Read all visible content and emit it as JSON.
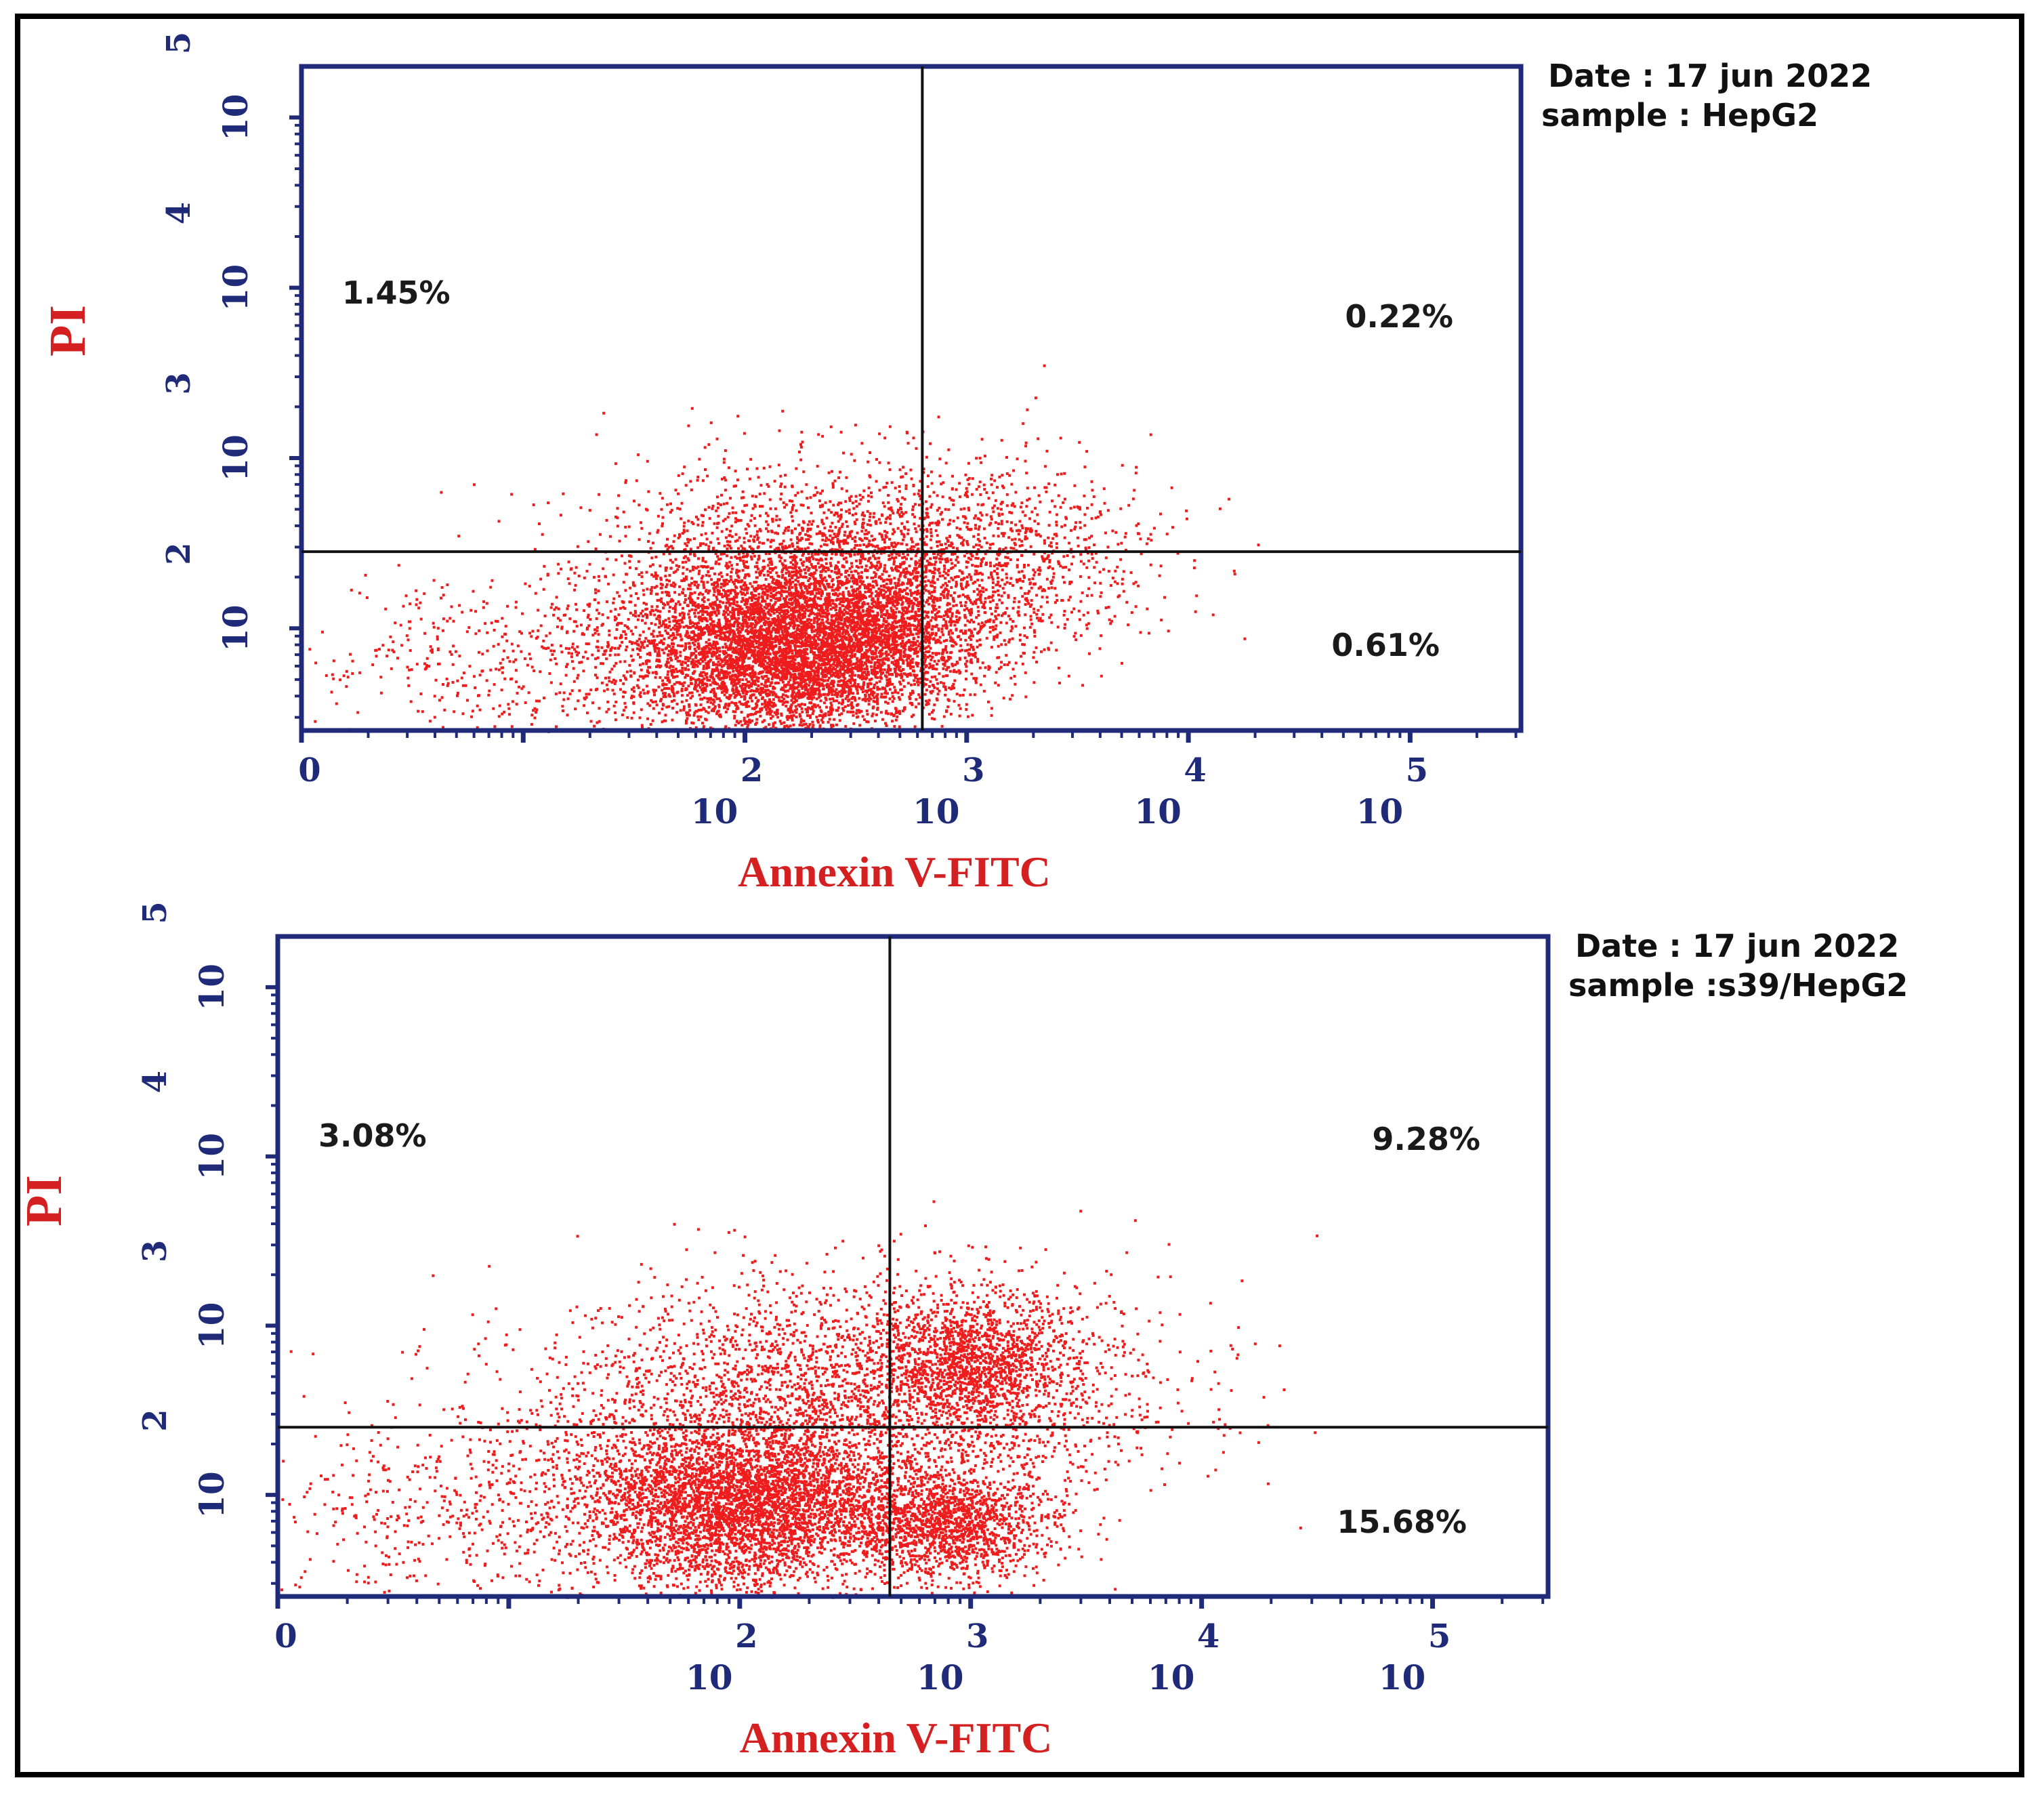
{
  "colors": {
    "axis": "#1f2a78",
    "dots": "#ee1c1c",
    "title": "#d42020",
    "gate": "#111111"
  },
  "chart_data": [
    {
      "type": "scatter",
      "title": "",
      "xlabel": "Annexin V-FITC",
      "ylabel": "PI",
      "xlim": [
        0,
        5.5
      ],
      "ylim": [
        1.4,
        5.3
      ],
      "xscale": "log10",
      "yscale": "log10",
      "x_ticks": [
        {
          "base": "10",
          "exp": "0"
        },
        {
          "base": "10",
          "exp": "2"
        },
        {
          "base": "10",
          "exp": "3"
        },
        {
          "base": "10",
          "exp": "4"
        },
        {
          "base": "10",
          "exp": "5"
        }
      ],
      "y_ticks": [
        {
          "base": "10",
          "exp": "2"
        },
        {
          "base": "10",
          "exp": "3"
        },
        {
          "base": "10",
          "exp": "4"
        },
        {
          "base": "10",
          "exp": "5"
        }
      ],
      "gates": {
        "x": 2.8,
        "y": 2.45
      },
      "quadrants": {
        "upper_left": "1.45%",
        "upper_right": "0.22%",
        "lower_left": "",
        "lower_right": "0.61%"
      },
      "info": {
        "date": "Date : 17 jun 2022",
        "sample": "sample :  HepG2"
      },
      "clusters": [
        {
          "cx": 2.15,
          "cy": 1.9,
          "sx": 0.35,
          "sy": 0.27,
          "n": 5200
        },
        {
          "cx": 2.6,
          "cy": 1.95,
          "sx": 0.25,
          "sy": 0.22,
          "n": 1400
        },
        {
          "cx": 2.5,
          "cy": 2.45,
          "sx": 0.6,
          "sy": 0.3,
          "n": 1800
        },
        {
          "cx": 3.1,
          "cy": 2.3,
          "sx": 0.35,
          "sy": 0.3,
          "n": 650
        },
        {
          "cx": 1.0,
          "cy": 1.8,
          "sx": 0.5,
          "sy": 0.25,
          "n": 500
        }
      ]
    },
    {
      "type": "scatter",
      "title": "",
      "xlabel": "Annexin V-FITC",
      "ylabel": "PI",
      "xlim": [
        0,
        5.5
      ],
      "ylim": [
        1.4,
        5.3
      ],
      "xscale": "log10",
      "yscale": "log10",
      "x_ticks": [
        {
          "base": "10",
          "exp": "0"
        },
        {
          "base": "10",
          "exp": "2"
        },
        {
          "base": "10",
          "exp": "3"
        },
        {
          "base": "10",
          "exp": "4"
        },
        {
          "base": "10",
          "exp": "5"
        }
      ],
      "y_ticks": [
        {
          "base": "10",
          "exp": "2"
        },
        {
          "base": "10",
          "exp": "3"
        },
        {
          "base": "10",
          "exp": "4"
        },
        {
          "base": "10",
          "exp": "5"
        }
      ],
      "gates": {
        "x": 2.65,
        "y": 2.4
      },
      "quadrants": {
        "upper_left": "3.08%",
        "upper_right": "9.28%",
        "lower_left": "",
        "lower_right": "15.68%"
      },
      "info": {
        "date": "Date : 17 jun 2022",
        "sample": "sample :s39/HepG2"
      },
      "clusters": [
        {
          "cx": 2.0,
          "cy": 1.95,
          "sx": 0.35,
          "sy": 0.25,
          "n": 4200
        },
        {
          "cx": 2.9,
          "cy": 1.85,
          "sx": 0.22,
          "sy": 0.18,
          "n": 1500
        },
        {
          "cx": 3.0,
          "cy": 2.8,
          "sx": 0.2,
          "sy": 0.18,
          "n": 1100
        },
        {
          "cx": 2.8,
          "cy": 2.65,
          "sx": 0.55,
          "sy": 0.35,
          "n": 1600
        },
        {
          "cx": 2.1,
          "cy": 2.55,
          "sx": 0.6,
          "sy": 0.35,
          "n": 1500
        },
        {
          "cx": 0.8,
          "cy": 1.9,
          "sx": 0.45,
          "sy": 0.3,
          "n": 500
        }
      ]
    }
  ]
}
